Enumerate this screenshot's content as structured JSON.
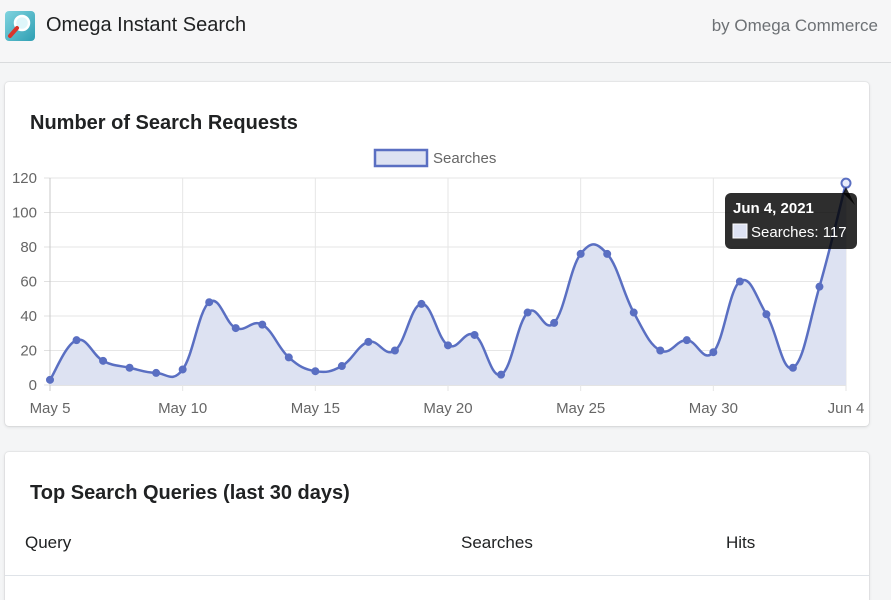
{
  "header": {
    "app_name": "Omega Instant Search",
    "by_line": "by Omega Commerce",
    "icon": "magnifier-icon"
  },
  "chart_card": {
    "title": "Number of Search Requests"
  },
  "chart_data": {
    "type": "line",
    "title": "Number of Search Requests",
    "legend": "top-center",
    "series": [
      {
        "name": "Searches",
        "color": "#5a6fc2",
        "fill": "#dde2f2",
        "values": [
          3,
          26,
          14,
          10,
          7,
          9,
          48,
          33,
          35,
          16,
          8,
          11,
          25,
          20,
          47,
          23,
          29,
          6,
          42,
          36,
          76,
          76,
          42,
          20,
          26,
          19,
          60,
          41,
          10,
          57,
          117
        ]
      }
    ],
    "x_dates": [
      "May 5",
      "May 6",
      "May 7",
      "May 8",
      "May 9",
      "May 10",
      "May 11",
      "May 12",
      "May 13",
      "May 14",
      "May 15",
      "May 16",
      "May 17",
      "May 18",
      "May 19",
      "May 20",
      "May 21",
      "May 22",
      "May 23",
      "May 24",
      "May 25",
      "May 26",
      "May 27",
      "May 28",
      "May 29",
      "May 30",
      "May 31",
      "Jun 1",
      "Jun 2",
      "Jun 3",
      "Jun 4"
    ],
    "x_tick_labels": [
      "May 5",
      "May 10",
      "May 15",
      "May 20",
      "May 25",
      "May 30",
      "Jun 4"
    ],
    "y_tick_labels": [
      "0",
      "20",
      "40",
      "60",
      "80",
      "100",
      "120"
    ],
    "ylim": [
      0,
      120
    ],
    "grid": true,
    "tooltip": {
      "title": "Jun 4, 2021",
      "label": "Searches: 117"
    }
  },
  "table_card": {
    "title": "Top Search Queries (last 30 days)",
    "columns": [
      "Query",
      "Searches",
      "Hits"
    ]
  }
}
